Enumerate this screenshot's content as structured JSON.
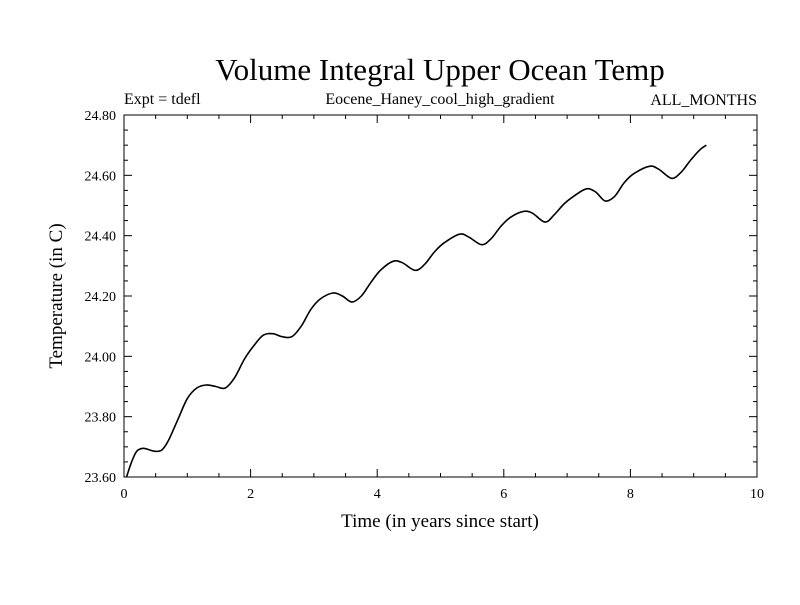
{
  "chart_data": {
    "type": "line",
    "title": "Volume Integral Upper Ocean Temp",
    "subtitle_left": "Expt = tdefl",
    "subtitle_center": "Eocene_Haney_cool_high_gradient",
    "subtitle_right": "ALL_MONTHS",
    "xlabel": "Time (in years since start)",
    "ylabel": "Temperature (in C)",
    "xlim": [
      0,
      10
    ],
    "ylim": [
      23.6,
      24.8
    ],
    "x_ticks": [
      "0",
      "2",
      "4",
      "6",
      "8",
      "10"
    ],
    "y_ticks": [
      "23.60",
      "23.80",
      "24.00",
      "24.20",
      "24.40",
      "24.60",
      "24.80"
    ],
    "x_tick_values": [
      0,
      2,
      4,
      6,
      8,
      10
    ],
    "y_tick_values": [
      23.6,
      23.8,
      24.0,
      24.2,
      24.4,
      24.6,
      24.8
    ],
    "grid": false,
    "series": [
      {
        "color": "#000000",
        "x": [
          0.04,
          0.12,
          0.2,
          0.3,
          0.4,
          0.5,
          0.6,
          0.7,
          0.85,
          1.0,
          1.15,
          1.3,
          1.45,
          1.6,
          1.75,
          1.9,
          2.05,
          2.2,
          2.35,
          2.5,
          2.65,
          2.8,
          2.95,
          3.1,
          3.3,
          3.45,
          3.6,
          3.75,
          3.9,
          4.05,
          4.25,
          4.4,
          4.6,
          4.75,
          4.9,
          5.05,
          5.3,
          5.45,
          5.65,
          5.8,
          5.95,
          6.1,
          6.3,
          6.45,
          6.65,
          6.8,
          6.95,
          7.1,
          7.3,
          7.45,
          7.6,
          7.75,
          7.9,
          8.05,
          8.3,
          8.45,
          8.65,
          8.8,
          8.95,
          9.1,
          9.2
        ],
        "y": [
          23.6,
          23.65,
          23.685,
          23.695,
          23.69,
          23.685,
          23.69,
          23.72,
          23.79,
          23.86,
          23.895,
          23.905,
          23.9,
          23.895,
          23.93,
          23.99,
          24.035,
          24.07,
          24.075,
          24.065,
          24.065,
          24.1,
          24.155,
          24.19,
          24.21,
          24.2,
          24.18,
          24.2,
          24.245,
          24.285,
          24.315,
          24.31,
          24.285,
          24.305,
          24.345,
          24.375,
          24.405,
          24.395,
          24.37,
          24.39,
          24.43,
          24.46,
          24.48,
          24.475,
          24.445,
          24.47,
          24.505,
          24.53,
          24.555,
          24.545,
          24.515,
          24.53,
          24.575,
          24.605,
          24.63,
          24.62,
          24.59,
          24.61,
          24.65,
          24.685,
          24.7
        ]
      }
    ]
  }
}
